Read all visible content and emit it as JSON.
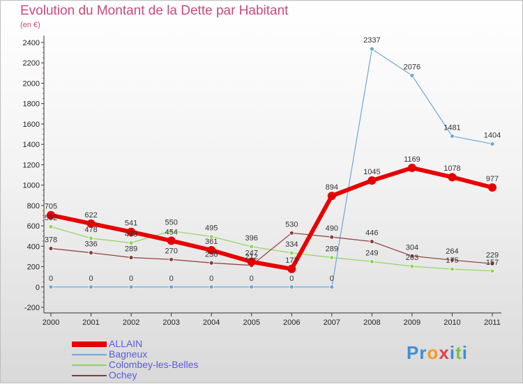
{
  "title": "Evolution du Montant de la Dette par Habitant",
  "subtitle": "(en €)",
  "logo_text": "Proxiti",
  "chart_data": {
    "type": "line",
    "title": "Evolution du Montant de la Dette par Habitant",
    "subtitle": "(en €)",
    "x": [
      "2000",
      "2001",
      "2002",
      "2003",
      "2004",
      "2005",
      "2006",
      "2007",
      "2008",
      "2009",
      "2010",
      "2011"
    ],
    "ylim": [
      -200,
      2400
    ],
    "yticks": [
      -200,
      0,
      200,
      400,
      600,
      800,
      1000,
      1200,
      1400,
      1600,
      1800,
      2000,
      2200,
      2400
    ],
    "grid": false,
    "legend_position": "bottom-left",
    "series": [
      {
        "name": "ALLAIN",
        "color": "#e60000",
        "values": [
          705,
          622,
          541,
          454,
          361,
          247,
          177,
          894,
          1045,
          1169,
          1078,
          977
        ]
      },
      {
        "name": "Bagneux",
        "color": "#6ea6d8",
        "values": [
          0,
          0,
          0,
          0,
          0,
          0,
          0,
          0,
          2337,
          2076,
          1481,
          1404
        ]
      },
      {
        "name": "Colombey-les-Belles",
        "color": "#8fd65a",
        "values": [
          592,
          478,
          433,
          550,
          495,
          396,
          334,
          289,
          249,
          203,
          175,
          157
        ]
      },
      {
        "name": "Ochey",
        "color": "#8b3a3a",
        "values": [
          378,
          336,
          289,
          270,
          236,
          212,
          530,
          490,
          446,
          304,
          264,
          229
        ]
      }
    ]
  }
}
